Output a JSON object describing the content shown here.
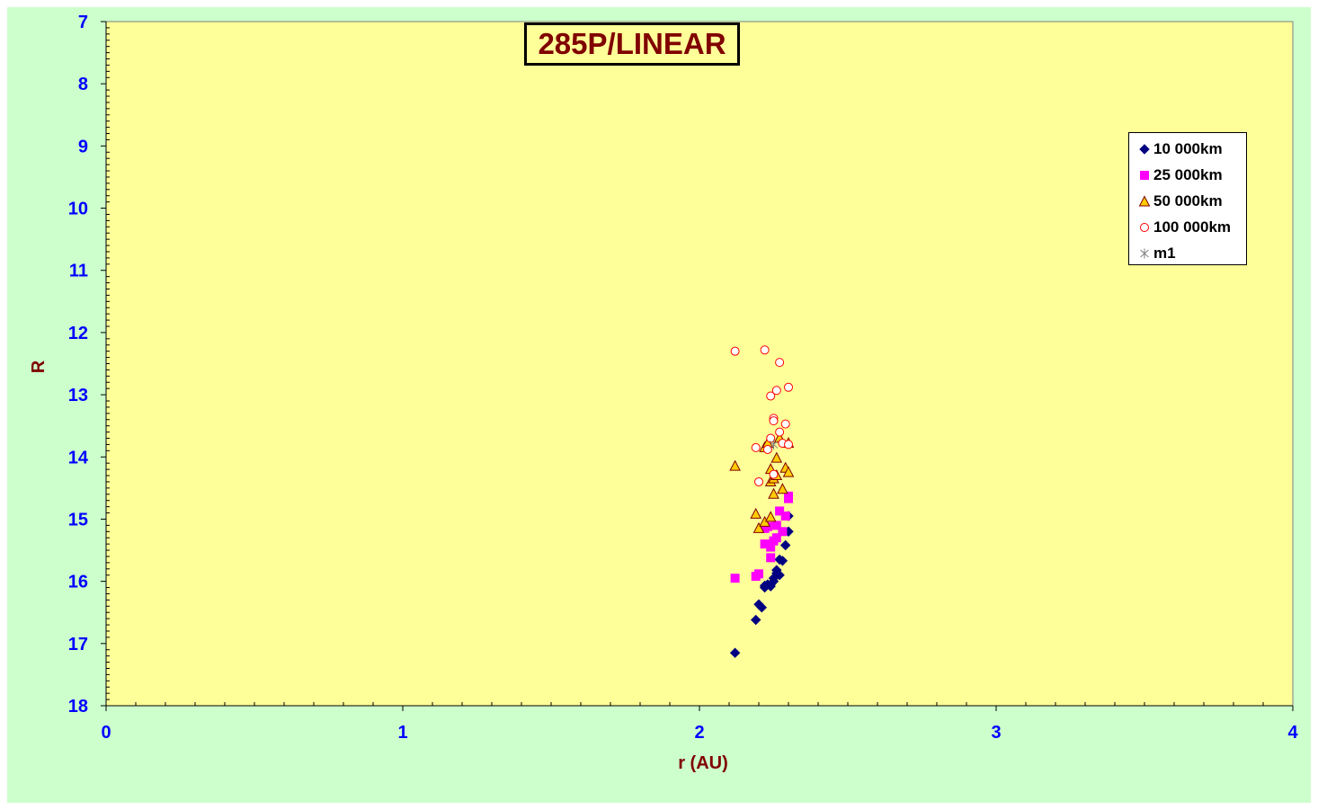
{
  "chart_data": {
    "type": "scatter",
    "title": "285P/LINEAR",
    "xlabel": "r (AU)",
    "ylabel": "R",
    "xlim": [
      0,
      4
    ],
    "ylim": [
      18,
      7
    ],
    "y_inverted": true,
    "x_ticks": [
      "0",
      "1",
      "2",
      "3",
      "4"
    ],
    "y_ticks": [
      "7",
      "8",
      "9",
      "10",
      "11",
      "12",
      "13",
      "14",
      "15",
      "16",
      "17",
      "18"
    ],
    "grid": false,
    "legend_position": "right",
    "colors": {
      "plot_area": "#ffff99",
      "frame": "#ccffcc",
      "tick_labels": "#0000ff",
      "axis_titles": "#800000"
    },
    "series": [
      {
        "name": "10 000km",
        "marker": "diamond",
        "color": "#000080",
        "x": [
          2.12,
          2.19,
          2.2,
          2.22,
          2.21,
          2.22,
          2.23,
          2.24,
          2.25,
          2.25,
          2.26,
          2.27,
          2.27,
          2.28,
          2.29,
          2.3,
          2.3,
          2.24,
          2.26
        ],
        "y": [
          17.15,
          16.62,
          16.37,
          16.1,
          16.42,
          16.07,
          16.05,
          16.08,
          16.0,
          15.95,
          15.82,
          15.65,
          15.9,
          15.67,
          15.42,
          15.2,
          14.95,
          16.05,
          15.87
        ]
      },
      {
        "name": "25 000km",
        "marker": "square",
        "color": "#ff00ff",
        "x": [
          2.12,
          2.19,
          2.2,
          2.22,
          2.23,
          2.24,
          2.25,
          2.26,
          2.26,
          2.27,
          2.28,
          2.29,
          2.3,
          2.3,
          2.22,
          2.24
        ],
        "y": [
          15.95,
          15.92,
          15.88,
          15.4,
          15.12,
          15.62,
          15.35,
          15.3,
          15.1,
          14.87,
          15.2,
          14.95,
          14.67,
          14.63,
          15.15,
          15.45
        ]
      },
      {
        "name": "50 000km",
        "marker": "triangle",
        "color": "#ffcc00",
        "x": [
          2.12,
          2.19,
          2.2,
          2.22,
          2.23,
          2.24,
          2.24,
          2.25,
          2.25,
          2.26,
          2.26,
          2.27,
          2.28,
          2.29,
          2.3,
          2.3,
          2.22,
          2.24
        ],
        "y": [
          14.15,
          14.92,
          15.15,
          13.85,
          13.78,
          14.2,
          14.4,
          14.35,
          14.6,
          14.02,
          14.3,
          13.7,
          14.52,
          14.18,
          14.25,
          13.78,
          15.05,
          14.97
        ]
      },
      {
        "name": "100 000km",
        "marker": "circle",
        "color": "#ff0000",
        "x": [
          2.12,
          2.19,
          2.2,
          2.22,
          2.24,
          2.24,
          2.25,
          2.25,
          2.26,
          2.27,
          2.28,
          2.29,
          2.3,
          2.3,
          2.27,
          2.25,
          2.23
        ],
        "y": [
          12.3,
          13.85,
          14.4,
          12.28,
          13.02,
          13.7,
          13.38,
          13.42,
          12.93,
          12.48,
          13.78,
          13.47,
          12.88,
          13.8,
          13.6,
          14.28,
          13.88
        ]
      },
      {
        "name": "m1",
        "marker": "asterisk",
        "color": "#808080",
        "x": [
          2.25
        ],
        "y": [
          13.8
        ]
      }
    ]
  }
}
